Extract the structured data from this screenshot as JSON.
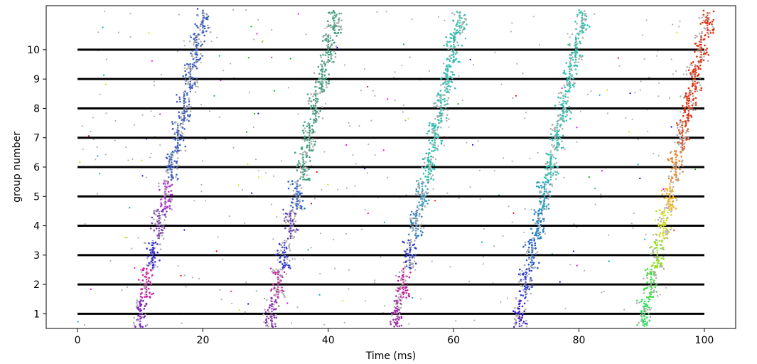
{
  "chart_data": {
    "type": "scatter",
    "title": "",
    "xlabel": "Time (ms)",
    "ylabel": "group number",
    "xlim": [
      -5,
      105
    ],
    "ylim": [
      0.5,
      11.5
    ],
    "xticks": [
      0,
      20,
      40,
      60,
      80,
      100
    ],
    "xtick_labels": [
      "0",
      "20",
      "40",
      "60",
      "80",
      "100"
    ],
    "yticks": [
      1,
      2,
      3,
      4,
      5,
      6,
      7,
      8,
      9,
      10
    ],
    "ytick_labels": [
      "1",
      "2",
      "3",
      "4",
      "5",
      "6",
      "7",
      "8",
      "9",
      "10"
    ],
    "grid": false,
    "legend": "none",
    "group_lines": {
      "color": "#000000",
      "x_range": [
        0,
        100
      ],
      "y_values": [
        1,
        2,
        3,
        4,
        5,
        6,
        7,
        8,
        9,
        10
      ]
    },
    "volleys": [
      {
        "start": 10,
        "step": 1.0,
        "colors": [
          "#7f1fbf",
          "#d01fa8",
          "#3a2fd0",
          "#7a3fb0",
          "#b02fd0",
          "#4060c0"
        ]
      },
      {
        "start": 31,
        "step": 1.0,
        "colors": [
          "#8a2fb0",
          "#c0309f",
          "#3c40c8",
          "#6a40b0",
          "#2f60c8",
          "#40a080"
        ]
      },
      {
        "start": 51,
        "step": 1.0,
        "colors": [
          "#a02fa8",
          "#c01f9f",
          "#2f40c8",
          "#3a80c0",
          "#3fa0c0",
          "#30c0b0"
        ]
      },
      {
        "start": 70.5,
        "step": 1.0,
        "colors": [
          "#3a1fd0",
          "#2f40d0",
          "#2060d0",
          "#2080c8",
          "#20a0c0",
          "#30c0b0"
        ]
      },
      {
        "start": 90.5,
        "step": 1.0,
        "colors": [
          "#2fe060",
          "#3fe040",
          "#8fe020",
          "#d0e020",
          "#f0b020",
          "#f08020",
          "#e05020",
          "#e03010"
        ]
      }
    ],
    "background_color": "#b0b0b0",
    "accent_colors": [
      "#00b0b0",
      "#ff00ff",
      "#ff0000",
      "#00c000",
      "#0000ff",
      "#e0e000"
    ]
  }
}
